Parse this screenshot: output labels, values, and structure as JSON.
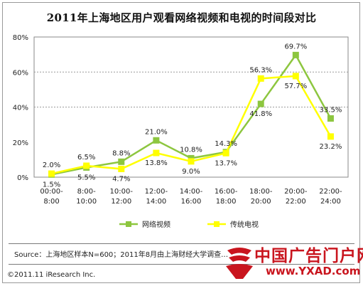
{
  "chart_data": {
    "type": "line",
    "title": "2011年上海地区用户观看网络视频和电视的时间段对比",
    "categories": [
      "00:00-8:00",
      "8:00-10:00",
      "10:00-12:00",
      "12:00-14:00",
      "14:00-16:00",
      "16:00-18:00",
      "18:00-20:00",
      "20:00-22:00",
      "22:00-24:00"
    ],
    "category_lines": [
      [
        "00:00-",
        "8:00"
      ],
      [
        "8:00-",
        "10:00"
      ],
      [
        "10:00-",
        "12:00"
      ],
      [
        "12:00-",
        "14:00"
      ],
      [
        "14:00-",
        "16:00"
      ],
      [
        "16:00-",
        "18:00"
      ],
      [
        "18:00-",
        "20:00"
      ],
      [
        "20:00-",
        "22:00"
      ],
      [
        "22:00-",
        "24:00"
      ]
    ],
    "yticks": [
      "0%",
      "20%",
      "40%",
      "60%",
      "80%"
    ],
    "ylim": [
      0,
      80
    ],
    "grid": "horizontal dashed at 40% and 60%",
    "legend": "bottom-center",
    "series": [
      {
        "name": "网络视频",
        "color": "#8dc63f",
        "marker": "square",
        "values": [
          1.5,
          5.5,
          8.8,
          21.0,
          10.8,
          14.3,
          41.8,
          69.7,
          33.5
        ],
        "labels": [
          "1.5%",
          "5.5%",
          "8.8%",
          "21.0%",
          "10.8%",
          "14.3%",
          "41.8%",
          "69.7%",
          "33.5%"
        ]
      },
      {
        "name": "传统电视",
        "color": "#ffff00",
        "marker": "square",
        "values": [
          2.0,
          6.5,
          4.7,
          13.8,
          9.0,
          13.7,
          56.3,
          57.7,
          23.2
        ],
        "labels": [
          "2.0%",
          "6.5%",
          "4.7%",
          "13.8%",
          "9.0%",
          "13.7%",
          "56.3%",
          "57.7%",
          "23.2%"
        ]
      }
    ]
  },
  "footer": {
    "source": "Source：上海地区样本N=600；2011年8月由上海财经大学调查…",
    "copyright": "©2011.11 iResearch Inc."
  },
  "watermark": {
    "brand": "中国广告门户网",
    "url": "www.YXAD.com"
  }
}
